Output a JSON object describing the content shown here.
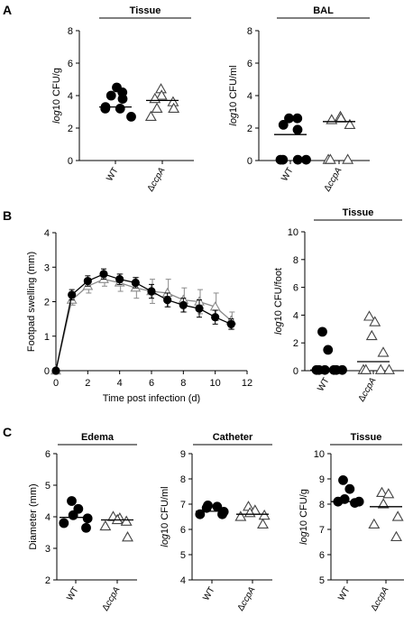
{
  "panels": {
    "A": {
      "letter": "A",
      "plots": [
        {
          "title": "Tissue",
          "ylabel_prefix": "log",
          "ylabel_rest": "10 CFU/g",
          "ylim": [
            0,
            8
          ],
          "yticks": [
            0,
            2,
            4,
            6,
            8
          ],
          "categories": [
            "WT",
            "ΔccpA"
          ],
          "groups": [
            {
              "name": "WT",
              "marker": "filled-circle",
              "mean": 3.3,
              "points": [
                3.2,
                4.0,
                3.8,
                4.2,
                3.3,
                3.2,
                4.5,
                2.7
              ]
            },
            {
              "name": "ΔccpA",
              "marker": "open-triangle",
              "mean": 3.7,
              "points": [
                3.8,
                4.4,
                3.2,
                3.6,
                4.0,
                2.7,
                3.2
              ]
            }
          ]
        },
        {
          "title": "BAL",
          "ylabel_prefix": "log",
          "ylabel_rest": "10 CFU/ml",
          "ylim": [
            0,
            8
          ],
          "yticks": [
            0,
            2,
            4,
            6,
            8
          ],
          "categories": [
            "WT",
            "ΔccpA"
          ],
          "groups": [
            {
              "name": "WT",
              "marker": "filled-circle",
              "mean": 1.6,
              "points": [
                2.2,
                2.6,
                1.9,
                2.6,
                0.05,
                0.05,
                0.05,
                0.05
              ]
            },
            {
              "name": "ΔccpA",
              "marker": "open-triangle",
              "mean": 2.4,
              "points": [
                2.5,
                2.6,
                2.7,
                2.2,
                0.05,
                0.05,
                0.05
              ]
            }
          ]
        }
      ]
    },
    "B": {
      "letter": "B",
      "line": {
        "ylabel": "Footpad swelling (mm)",
        "xlabel": "Time post infection (d)",
        "xlim": [
          0,
          12
        ],
        "ylim": [
          0,
          4
        ],
        "xticks": [
          0,
          2,
          4,
          6,
          8,
          10,
          12
        ],
        "yticks": [
          0,
          1,
          2,
          3,
          4
        ],
        "series": [
          {
            "marker": "filled-circle",
            "color": "#000000",
            "x": [
              0,
              1,
              2,
              3,
              4,
              5,
              6,
              7,
              8,
              9,
              10,
              11
            ],
            "y": [
              0,
              2.2,
              2.6,
              2.8,
              2.65,
              2.55,
              2.3,
              2.05,
              1.9,
              1.8,
              1.55,
              1.35
            ],
            "err": [
              0,
              0.15,
              0.15,
              0.15,
              0.15,
              0.15,
              0.2,
              0.2,
              0.2,
              0.25,
              0.2,
              0.15
            ]
          },
          {
            "marker": "open-triangle",
            "color": "#8a8a8a",
            "x": [
              0,
              1,
              2,
              3,
              4,
              5,
              6,
              7,
              8,
              9,
              10,
              11
            ],
            "y": [
              0,
              2.05,
              2.45,
              2.65,
              2.55,
              2.4,
              2.3,
              2.25,
              2.05,
              2.0,
              1.85,
              1.45
            ],
            "err": [
              0,
              0.15,
              0.2,
              0.2,
              0.25,
              0.3,
              0.35,
              0.4,
              0.35,
              0.35,
              0.4,
              0.25
            ]
          }
        ]
      },
      "scatter": {
        "title": "Tissue",
        "ylabel_prefix": "log",
        "ylabel_rest": "10 CFU/foot",
        "ylim": [
          0,
          10
        ],
        "yticks": [
          0,
          2,
          4,
          6,
          8,
          10
        ],
        "categories": [
          "WT",
          "ΔccpA"
        ],
        "groups": [
          {
            "name": "WT",
            "marker": "filled-circle",
            "mean": 0.05,
            "points": [
              2.8,
              1.5,
              0.05,
              0.05,
              0.05,
              0.05,
              0.05,
              0.05
            ]
          },
          {
            "name": "ΔccpA",
            "marker": "open-triangle",
            "mean": 0.65,
            "points": [
              3.9,
              3.5,
              2.5,
              1.3,
              0.05,
              0.05,
              0.05,
              0.05
            ]
          }
        ]
      }
    },
    "C": {
      "letter": "C",
      "plots": [
        {
          "title": "Edema",
          "ylabel": "Diameter (mm)",
          "ylim": [
            2,
            6
          ],
          "yticks": [
            2,
            3,
            4,
            5,
            6
          ],
          "categories": [
            "WT",
            "ΔccpA"
          ],
          "groups": [
            {
              "name": "WT",
              "marker": "filled-circle",
              "mean": 3.98,
              "points": [
                4.5,
                4.25,
                4.05,
                3.95,
                3.8,
                3.65
              ]
            },
            {
              "name": "ΔccpA",
              "marker": "open-triangle",
              "mean": 3.9,
              "points": [
                4.0,
                3.95,
                3.85,
                3.9,
                3.7,
                3.35
              ]
            }
          ]
        },
        {
          "title": "Catheter",
          "ylabel_prefix": "log",
          "ylabel_rest": "10 CFU/ml",
          "ylim": [
            4,
            9
          ],
          "yticks": [
            4,
            5,
            6,
            7,
            8,
            9
          ],
          "categories": [
            "WT",
            "ΔccpA"
          ],
          "groups": [
            {
              "name": "WT",
              "marker": "filled-circle",
              "mean": 6.72,
              "points": [
                6.95,
                6.85,
                6.9,
                6.7,
                6.6,
                6.6
              ]
            },
            {
              "name": "ΔccpA",
              "marker": "open-triangle",
              "mean": 6.6,
              "points": [
                6.9,
                6.75,
                6.65,
                6.55,
                6.5,
                6.2
              ]
            }
          ]
        },
        {
          "title": "Tissue",
          "ylabel_prefix": "log",
          "ylabel_rest": "10 CFU/g",
          "ylim": [
            5,
            10
          ],
          "yticks": [
            5,
            6,
            7,
            8,
            9,
            10
          ],
          "categories": [
            "WT",
            "ΔccpA"
          ],
          "groups": [
            {
              "name": "WT",
              "marker": "filled-circle",
              "mean": 8.1,
              "points": [
                8.95,
                8.6,
                8.2,
                8.1,
                8.05,
                8.1
              ]
            },
            {
              "name": "ΔccpA",
              "marker": "open-triangle",
              "mean": 7.9,
              "points": [
                8.45,
                8.4,
                8.0,
                7.5,
                7.2,
                6.7
              ]
            }
          ]
        }
      ]
    }
  },
  "chart_data": [
    {
      "type": "scatter",
      "title": "Tissue",
      "ylabel": "log10 CFU/g",
      "ylim": [
        0,
        8
      ],
      "categories": [
        "WT",
        "ΔccpA"
      ],
      "series": [
        {
          "name": "WT",
          "values": [
            3.2,
            4.0,
            3.8,
            4.2,
            3.3,
            3.2,
            4.5,
            2.7
          ],
          "mean": 3.3
        },
        {
          "name": "ΔccpA",
          "values": [
            3.8,
            4.4,
            3.2,
            3.6,
            4.0,
            2.7,
            3.2
          ],
          "mean": 3.7
        }
      ]
    },
    {
      "type": "scatter",
      "title": "BAL",
      "ylabel": "log10 CFU/ml",
      "ylim": [
        0,
        8
      ],
      "categories": [
        "WT",
        "ΔccpA"
      ],
      "series": [
        {
          "name": "WT",
          "values": [
            2.2,
            2.6,
            1.9,
            2.6,
            0,
            0,
            0,
            0
          ],
          "mean": 1.6
        },
        {
          "name": "ΔccpA",
          "values": [
            2.5,
            2.6,
            2.7,
            2.2,
            0,
            0,
            0
          ],
          "mean": 2.4
        }
      ]
    },
    {
      "type": "line",
      "ylabel": "Footpad swelling (mm)",
      "xlabel": "Time post infection (d)",
      "xlim": [
        0,
        12
      ],
      "ylim": [
        0,
        4
      ],
      "x": [
        0,
        1,
        2,
        3,
        4,
        5,
        6,
        7,
        8,
        9,
        10,
        11
      ],
      "series": [
        {
          "values": [
            0,
            2.2,
            2.6,
            2.8,
            2.65,
            2.55,
            2.3,
            2.05,
            1.9,
            1.8,
            1.55,
            1.35
          ]
        },
        {
          "values": [
            0,
            2.05,
            2.45,
            2.65,
            2.55,
            2.4,
            2.3,
            2.25,
            2.05,
            2.0,
            1.85,
            1.45
          ]
        }
      ]
    },
    {
      "type": "scatter",
      "title": "Tissue",
      "ylabel": "log10 CFU/foot",
      "ylim": [
        0,
        10
      ],
      "categories": [
        "WT",
        "ΔccpA"
      ],
      "series": [
        {
          "name": "WT",
          "values": [
            2.8,
            1.5,
            0,
            0,
            0,
            0,
            0,
            0
          ],
          "mean": 0
        },
        {
          "name": "ΔccpA",
          "values": [
            3.9,
            3.5,
            2.5,
            1.3,
            0,
            0,
            0,
            0
          ],
          "mean": 0.65
        }
      ]
    },
    {
      "type": "scatter",
      "title": "Edema",
      "ylabel": "Diameter (mm)",
      "ylim": [
        2,
        6
      ],
      "categories": [
        "WT",
        "ΔccpA"
      ],
      "series": [
        {
          "name": "WT",
          "values": [
            4.5,
            4.25,
            4.05,
            3.95,
            3.8,
            3.65
          ],
          "mean": 3.98
        },
        {
          "name": "ΔccpA",
          "values": [
            4.0,
            3.95,
            3.85,
            3.9,
            3.7,
            3.35
          ],
          "mean": 3.9
        }
      ]
    },
    {
      "type": "scatter",
      "title": "Catheter",
      "ylabel": "log10 CFU/ml",
      "ylim": [
        4,
        9
      ],
      "categories": [
        "WT",
        "ΔccpA"
      ],
      "series": [
        {
          "name": "WT",
          "values": [
            6.95,
            6.85,
            6.9,
            6.7,
            6.6,
            6.6
          ],
          "mean": 6.72
        },
        {
          "name": "ΔccpA",
          "values": [
            6.9,
            6.75,
            6.65,
            6.55,
            6.5,
            6.2
          ],
          "mean": 6.6
        }
      ]
    },
    {
      "type": "scatter",
      "title": "Tissue",
      "ylabel": "log10 CFU/g",
      "ylim": [
        5,
        10
      ],
      "categories": [
        "WT",
        "ΔccpA"
      ],
      "series": [
        {
          "name": "WT",
          "values": [
            8.95,
            8.6,
            8.2,
            8.1,
            8.05,
            8.1
          ],
          "mean": 8.1
        },
        {
          "name": "ΔccpA",
          "values": [
            8.45,
            8.4,
            8.0,
            7.5,
            7.2,
            6.7
          ],
          "mean": 7.9
        }
      ]
    }
  ]
}
